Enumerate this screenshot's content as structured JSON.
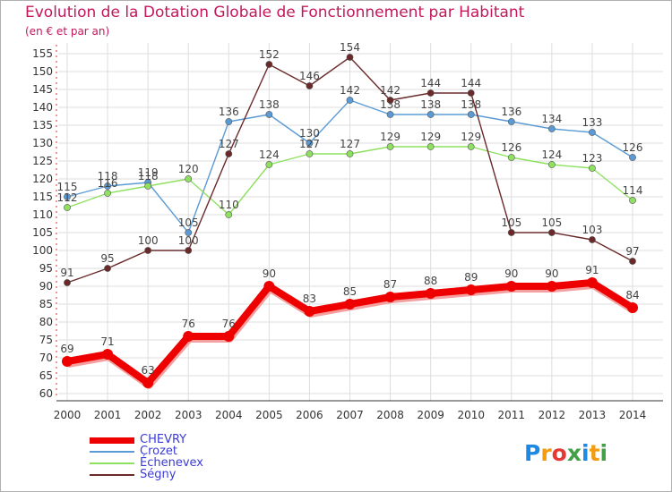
{
  "chart_data": {
    "type": "line",
    "title": "Evolution de la Dotation Globale de Fonctionnement par Habitant",
    "subtitle": "(en € et par an)",
    "x": [
      2000,
      2001,
      2002,
      2003,
      2004,
      2005,
      2006,
      2007,
      2008,
      2009,
      2010,
      2011,
      2012,
      2013,
      2014
    ],
    "ylim": [
      60,
      155
    ],
    "yticks": [
      60,
      65,
      70,
      75,
      80,
      85,
      90,
      95,
      100,
      105,
      110,
      115,
      120,
      125,
      130,
      135,
      140,
      145,
      150,
      155
    ],
    "grid": true,
    "legend_position": "bottom-left",
    "series": [
      {
        "name": "CHEVRY",
        "color": "#ee0000",
        "values": [
          69,
          71,
          63,
          76,
          76,
          90,
          83,
          85,
          87,
          88,
          89,
          90,
          90,
          91,
          84
        ]
      },
      {
        "name": "Crozet",
        "color": "#5b9bd5",
        "values": [
          115,
          118,
          119,
          105,
          136,
          138,
          130,
          142,
          138,
          138,
          138,
          136,
          134,
          133,
          126
        ]
      },
      {
        "name": "Échenevex",
        "color": "#8fe060",
        "values": [
          112,
          116,
          118,
          120,
          110,
          124,
          127,
          127,
          129,
          129,
          129,
          126,
          124,
          123,
          114
        ]
      },
      {
        "name": "Ségny",
        "color": "#6b2a2a",
        "values": [
          91,
          95,
          100,
          100,
          127,
          152,
          146,
          154,
          142,
          144,
          144,
          105,
          105,
          103,
          97
        ]
      }
    ]
  },
  "logo": {
    "letters": [
      "P",
      "r",
      "o",
      "x",
      "i",
      "t",
      "i"
    ],
    "colors": [
      "#1e88e5",
      "#f39c12",
      "#e53935",
      "#43a047",
      "#1e88e5",
      "#f39c12",
      "#43a047"
    ]
  }
}
